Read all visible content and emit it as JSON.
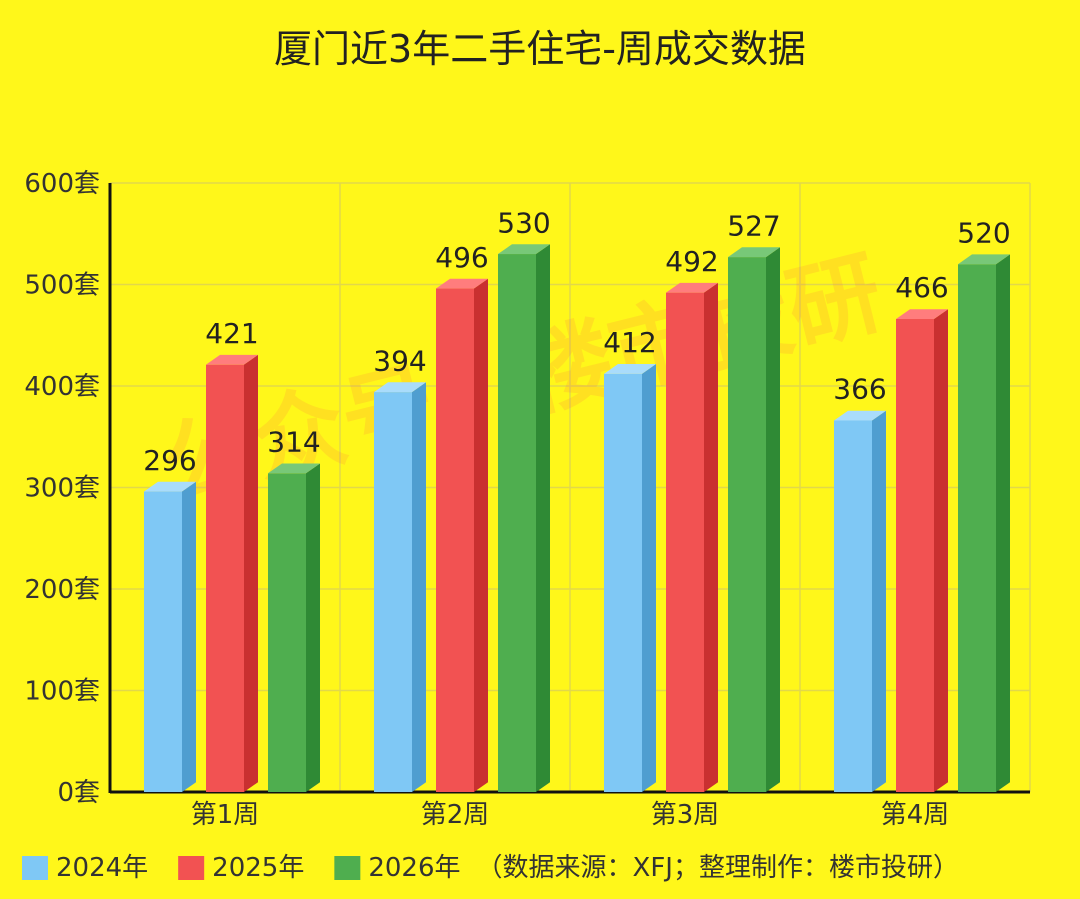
{
  "chart_data": {
    "type": "bar",
    "title": "厦门近3年二手住宅-周成交数据",
    "categories": [
      "第1周",
      "第2周",
      "第3周",
      "第4周"
    ],
    "series": [
      {
        "name": "2024年",
        "values": [
          296,
          394,
          412,
          366
        ],
        "color": "#7fc8f5",
        "side_color": "#4f9ed0",
        "top_color": "#a9dcfb"
      },
      {
        "name": "2025年",
        "values": [
          421,
          496,
          492,
          466
        ],
        "color": "#f25252",
        "side_color": "#c93030",
        "top_color": "#ff7d7d"
      },
      {
        "name": "2026年",
        "values": [
          314,
          530,
          527,
          520
        ],
        "color": "#4fae4f",
        "side_color": "#2f8a35",
        "top_color": "#78c878"
      }
    ],
    "y_ticks": [
      "0套",
      "100套",
      "200套",
      "300套",
      "400套",
      "500套",
      "600套"
    ],
    "ylim": [
      0,
      600
    ],
    "grid": true,
    "legend_position": "bottom-left",
    "legend_note": "（数据来源：XFJ；整理制作：楼市投研）",
    "background_color": "#fff71a",
    "watermark": "公众号：楼市投研"
  }
}
